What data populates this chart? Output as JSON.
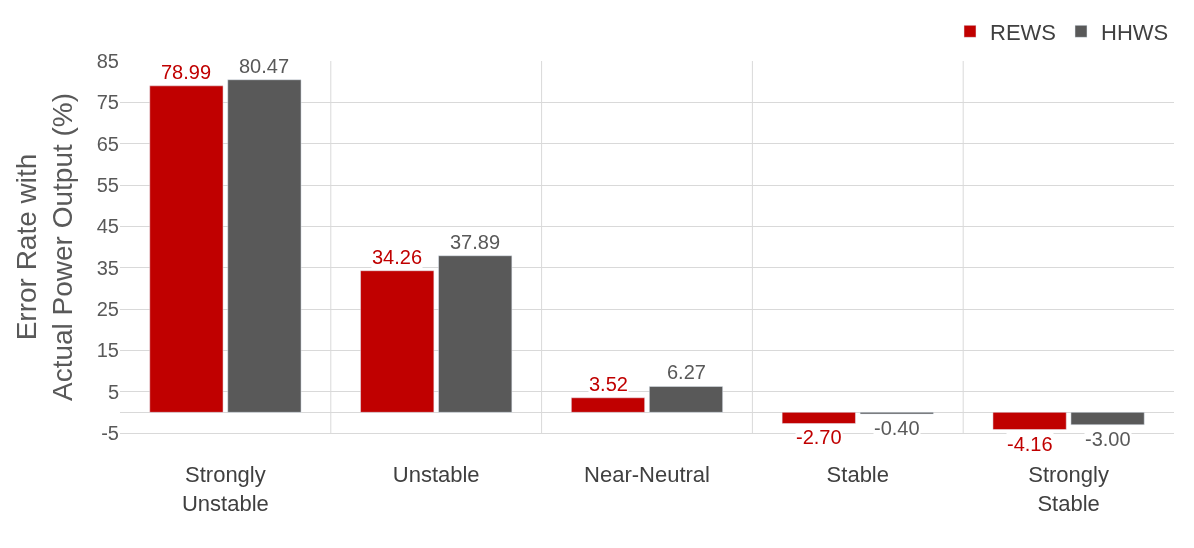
{
  "chart_data": {
    "type": "bar",
    "ylabel": "Error Rate with\nActual Power Output (%)",
    "categories": [
      "Strongly\nUnstable",
      "Unstable",
      "Near-Neutral",
      "Stable",
      "Strongly\nStable"
    ],
    "series": [
      {
        "name": "REWS",
        "color": "#c00000",
        "values": [
          78.99,
          34.26,
          3.52,
          -2.7,
          -4.16
        ],
        "value_labels": [
          "78.99",
          "34.26",
          "3.52",
          "-2.70",
          "-4.16"
        ]
      },
      {
        "name": "HHWS",
        "color": "#595959",
        "values": [
          80.47,
          37.89,
          6.27,
          -0.4,
          -3.0
        ],
        "value_labels": [
          "80.47",
          "37.89",
          "6.27",
          "-0.40",
          "-3.00"
        ]
      }
    ],
    "ylim": [
      -5,
      85
    ],
    "yticks": [
      -5,
      5,
      15,
      25,
      35,
      45,
      55,
      65,
      75,
      85
    ],
    "grid": true,
    "legend": "top right"
  }
}
